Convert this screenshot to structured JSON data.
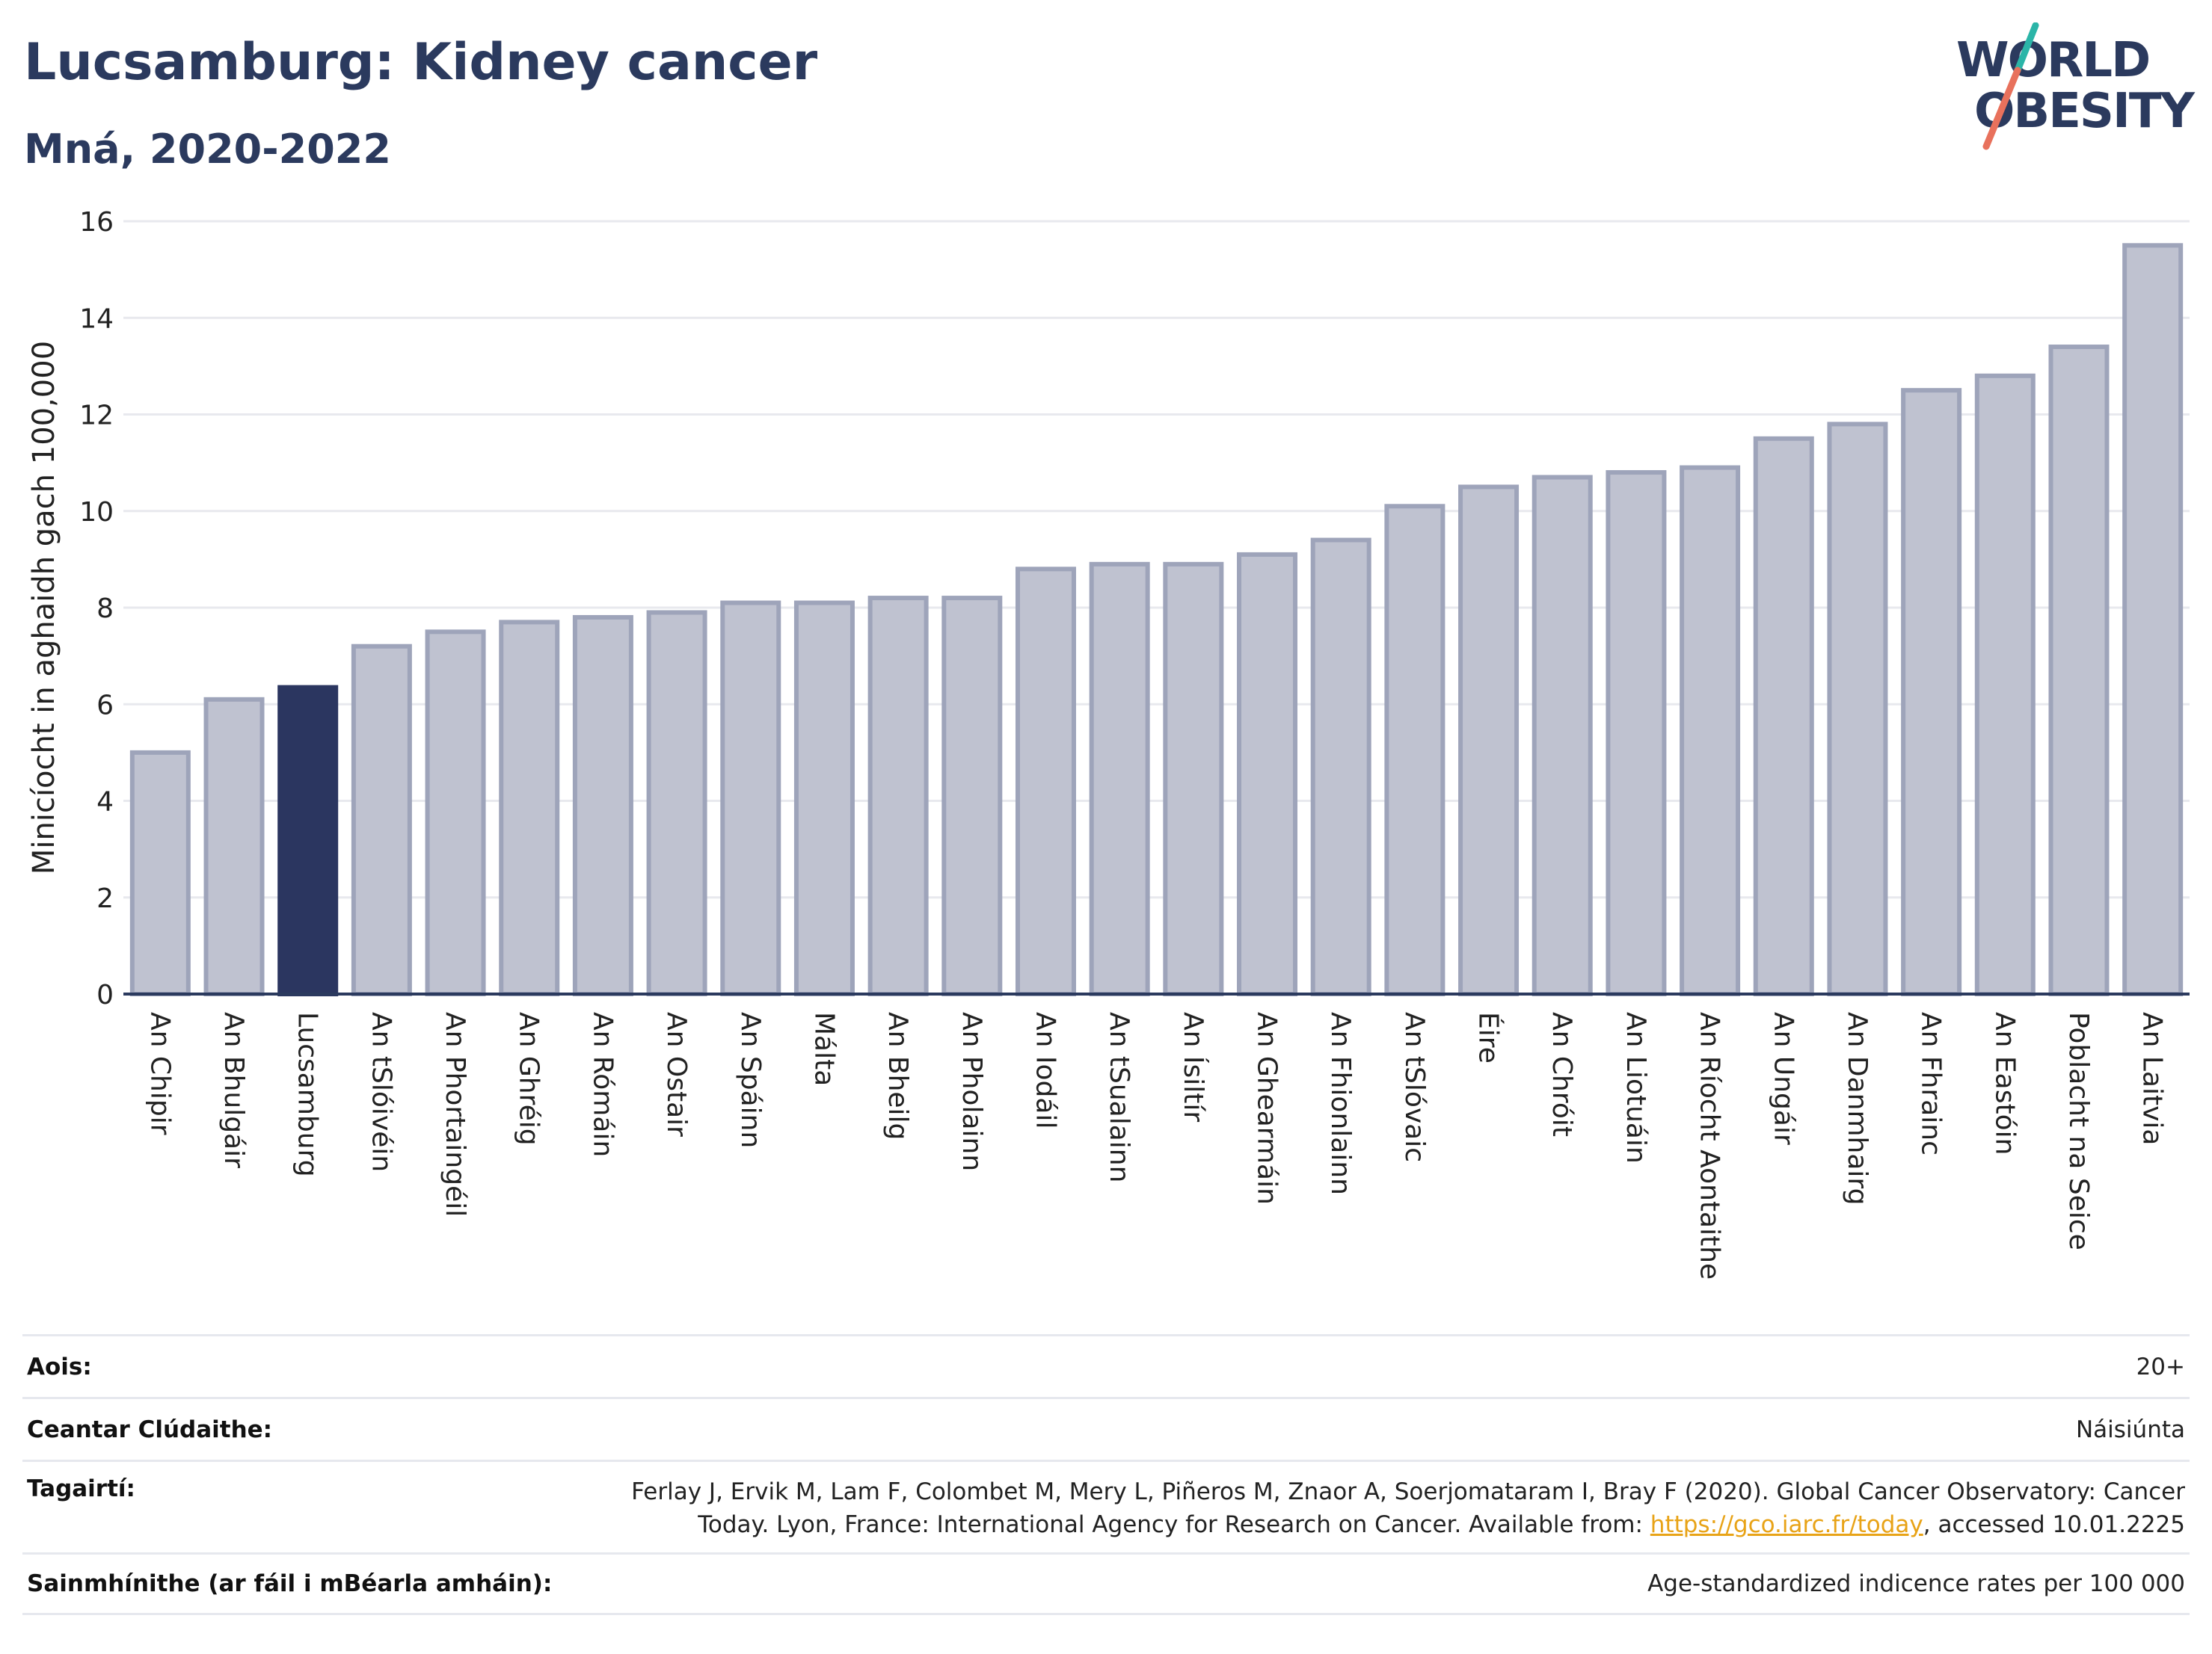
{
  "header": {
    "title": "Lucsamburg: Kidney cancer",
    "subtitle": "Mná, 2020-2022"
  },
  "logo": {
    "line1": "WORLD",
    "line2": "OBESITY",
    "slash_colors": [
      "#2bb5a8",
      "#e8715c"
    ]
  },
  "colors": {
    "bar": "#bfc2d0",
    "bar_edge": "#9ea4ba",
    "highlight": "#2b3660",
    "text": "#2b3a5e",
    "grid": "#e8e9ee"
  },
  "chart_data": {
    "type": "bar",
    "ylabel": "Minicíocht in aghaidh gach 100,000",
    "ylim": [
      0,
      16
    ],
    "yticks": [
      0,
      2,
      4,
      6,
      8,
      10,
      12,
      14,
      16
    ],
    "grid": true,
    "highlight": "Lucsamburg",
    "categories": [
      "An Chipir",
      "An Bhulgáir",
      "Lucsamburg",
      "An tSlóivéin",
      "An Phortaingéil",
      "An Ghréig",
      "An Rómáin",
      "An Ostair",
      "An Spáinn",
      "Málta",
      "An Bheilg",
      "An Pholainn",
      "An Iodáil",
      "An tSualainn",
      "An Ísiltír",
      "An Ghearmáin",
      "An Fhionlainn",
      "An tSlóvaic",
      "Éire",
      "An Chróit",
      "An Liotuáin",
      "An Ríocht Aontaithe",
      "An Ungáir",
      "An Danmhairg",
      "An Fhrainc",
      "An Eastóin",
      "Poblacht na Seice",
      "An Laitvia"
    ],
    "values": [
      5.0,
      6.1,
      6.35,
      7.2,
      7.5,
      7.7,
      7.8,
      7.9,
      8.1,
      8.1,
      8.2,
      8.2,
      8.8,
      8.9,
      8.9,
      9.1,
      9.4,
      10.1,
      10.5,
      10.7,
      10.8,
      10.9,
      11.5,
      11.8,
      12.5,
      12.8,
      13.4,
      15.5
    ]
  },
  "info": {
    "age_label": "Aois:",
    "age_value": "20+",
    "area_label": "Ceantar Clúdaithe:",
    "area_value": "Náisiúnta",
    "ref_label": "Tagairtí:",
    "ref_line1": "Ferlay J, Ervik M, Lam F, Colombet M, Mery L, Piñeros M, Znaor A, Soerjomataram I, Bray F (2020). Global Cancer Observatory: Cancer",
    "ref_line2_pre": "Today. Lyon, France: International Agency for Research on Cancer. Available from: ",
    "ref_link": "https://gco.iarc.fr/today",
    "ref_line2_post": ", accessed 10.01.2225",
    "def_label": "Sainmhínithe (ar fáil i mBéarla amháin):",
    "def_value": "Age-standardized indicence rates per 100 000"
  }
}
